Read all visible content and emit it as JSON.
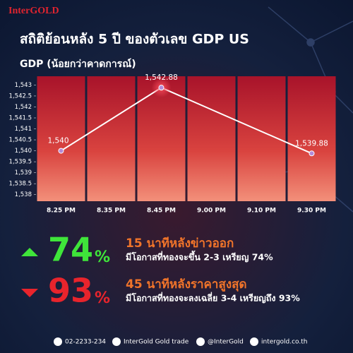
{
  "brand": "InterGOLD",
  "chart_data": {
    "type": "line",
    "title": "สถิติย้อนหลัง 5 ปี ของตัวเลข GDP US",
    "subtitle": "GDP (น้อยกว่าคาดการณ์)",
    "categories": [
      "8.25 PM",
      "8.35 PM",
      "8.45 PM",
      "9.00 PM",
      "9.10 PM",
      "9.30 PM"
    ],
    "values": [
      1540,
      null,
      1542.88,
      null,
      null,
      1539.88
    ],
    "value_labels": [
      "1,540",
      null,
      "1,542.88",
      null,
      null,
      "1,539.88"
    ],
    "span_gaps": true,
    "color": "#ffffff",
    "ylim": [
      1537.7,
      1543.4
    ],
    "yticks": [
      {
        "value": 1538,
        "label": "1,538"
      },
      {
        "value": 1538.5,
        "label": "1,538.5"
      },
      {
        "value": 1539,
        "label": "1,539"
      },
      {
        "value": 1539.5,
        "label": "1,539.5"
      },
      {
        "value": 1540,
        "label": "1,540"
      },
      {
        "value": 1540.5,
        "label": "1,540.5"
      },
      {
        "value": 1541,
        "label": "1,541"
      },
      {
        "value": 1541.5,
        "label": "1,541.5"
      },
      {
        "value": 1542,
        "label": "1,542"
      },
      {
        "value": 1542.5,
        "label": "1,542.5"
      },
      {
        "value": 1543,
        "label": "1,543"
      }
    ]
  },
  "stats": [
    {
      "direction": "up",
      "value": "74",
      "unit": "%",
      "title": "15 นาทีหลังข่าวออก",
      "description": "มีโอกาสที่ทองจะขึ้น 2-3 เหรียญ 74%"
    },
    {
      "direction": "down",
      "value": "93",
      "unit": "%",
      "title": "45 นาทีหลังราคาสูงสุด",
      "description": "มีโอกาสที่ทองจะลงเฉลี่ย 3-4 เหรียญถึง 93%"
    }
  ],
  "footer": {
    "phone": "02-2233-234",
    "facebook": "InterGold Gold trade",
    "line": "@InterGold",
    "website": "intergold.co.th"
  }
}
